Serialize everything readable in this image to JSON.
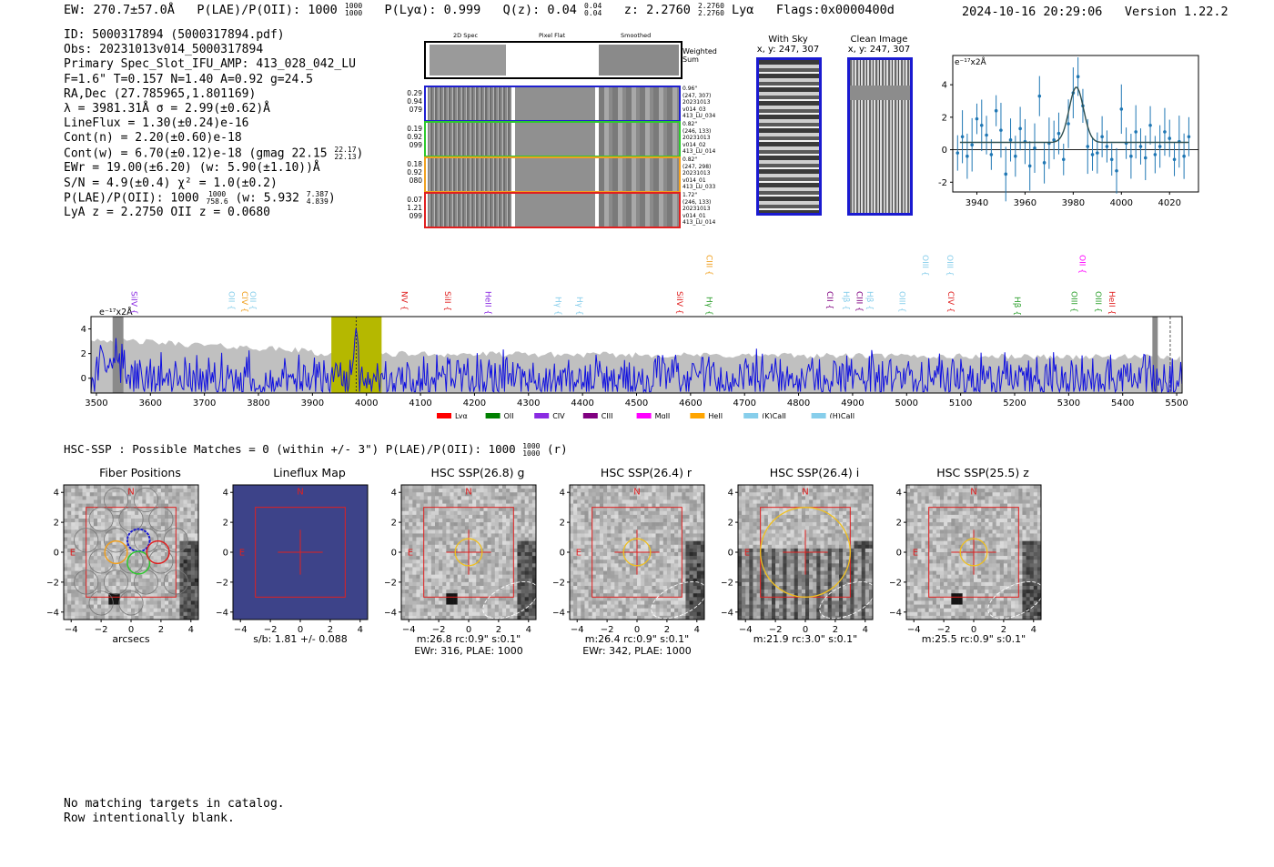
{
  "header": {
    "ew": "EW: 270.7±57.0Å",
    "plae_label": "P(LAE)/P(OII): 1000",
    "plae_sup": "1000",
    "plae_sub": "1000",
    "plya": "P(Lyα): 0.999",
    "qz_label": "Q(z): 0.04",
    "qz_sup": "0.04",
    "qz_sub": "0.04",
    "z_label": "z: 2.2760",
    "z_sup": "2.2760",
    "z_sub": "2.2760",
    "line": "Lyα",
    "flags": "Flags:0x0000400d",
    "timestamp": "2024-10-16 20:29:06",
    "version": "Version 1.22.2"
  },
  "info": {
    "id": "ID: 5000317894 (5000317894.pdf)",
    "obs": "Obs: 20231013v014_5000317894",
    "primary": "Primary Spec_Slot_IFU_AMP: 413_028_042_LU",
    "fiber": "F=1.6\"  T=0.157  N=1.40  A=0.92  g=24.5",
    "radec": "RA,Dec (27.785965,1.801169)",
    "lambda": "λ = 3981.31Å   σ = 2.99(±0.62)Å",
    "lineflux": "LineFlux = 1.30(±0.24)e-16",
    "contn": "Cont(n) = 2.20(±0.60)e-18",
    "contw": "Cont(w) = 6.70(±0.12)e-18 (gmag 22.15",
    "gmag_sup": "22.17",
    "gmag_sub": "22.13",
    "ewr": "EWr = 19.00(±6.20) (w: 5.90(±1.10))Å",
    "sn": "S/N = 4.9(±0.4)  χ² = 1.0(±0.2)",
    "plae": "P(LAE)/P(OII): 1000",
    "plae_sup": "1000",
    "plae_sub": "758.6",
    "plae_w": "(w: 5.932",
    "plae_w_sup": "7.387",
    "plae_w_sub": "4.839",
    "redshifts": "LyA z = 2.2750   OII z = 0.0680"
  },
  "stamps": {
    "col_titles": [
      "2D Spec",
      "Pixel Flat",
      "Smoothed"
    ],
    "weighted": "Weighted Sum",
    "rows": [
      {
        "left": [
          "0.29",
          "0.94",
          "079"
        ],
        "right": [
          "0.96\"",
          "(247, 307)",
          "20231013",
          "v014_03",
          "413_LU_034"
        ],
        "color": "#1f1fd0"
      },
      {
        "left": [
          "0.19",
          "0.92",
          "099"
        ],
        "right": [
          "0.82\"",
          "(246, 133)",
          "20231013",
          "v014_02",
          "413_LU_014"
        ],
        "color": "#2ec82e"
      },
      {
        "left": [
          "0.18",
          "0.92",
          "080"
        ],
        "right": [
          "0.82\"",
          "(247, 298)",
          "20231013",
          "v014_01",
          "413_LU_033"
        ],
        "color": "#f0a020"
      },
      {
        "left": [
          "0.07",
          "1.21",
          "099"
        ],
        "right": [
          "1.72\"",
          "(246, 133)",
          "20231013",
          "v014_01",
          "413_LU_014"
        ],
        "color": "#e02020"
      }
    ]
  },
  "sky": {
    "with_sky_title": "With Sky",
    "with_sky_coords": "x, y: 247, 307",
    "clean_title": "Clean Image",
    "clean_coords": "x, y: 247, 307"
  },
  "zoom_plot": {
    "unit_label": "e⁻¹⁷x2Å",
    "x_ticks": [
      "3940",
      "3960",
      "3980",
      "4000",
      "4020"
    ],
    "y_ticks": [
      "4",
      "2",
      "0",
      "-2"
    ]
  },
  "chart_data": [
    {
      "type": "scatter",
      "title": "Zoomed emission line (errorbars + Gaussian fit)",
      "xlabel": "",
      "ylabel": "e⁻¹⁷x2Å",
      "xlim": [
        3930,
        4032
      ],
      "ylim": [
        -2.6,
        5.8
      ],
      "fit": {
        "center": 3981.3,
        "sigma": 2.99,
        "amplitude": 3.4,
        "baseline": 0.45
      },
      "x": [
        3932,
        3934,
        3936,
        3938,
        3940,
        3942,
        3944,
        3946,
        3948,
        3950,
        3952,
        3954,
        3956,
        3958,
        3960,
        3962,
        3964,
        3966,
        3968,
        3970,
        3972,
        3974,
        3976,
        3978,
        3980,
        3982,
        3984,
        3986,
        3988,
        3990,
        3992,
        3994,
        3996,
        3998,
        4000,
        4002,
        4004,
        4006,
        4008,
        4010,
        4012,
        4014,
        4016,
        4018,
        4020,
        4022,
        4024,
        4026,
        4028
      ],
      "y": [
        -0.2,
        0.8,
        -0.4,
        0.3,
        1.9,
        1.5,
        0.9,
        -0.3,
        2.4,
        1.2,
        -1.5,
        0.6,
        -0.4,
        1.3,
        0.5,
        -1.0,
        0.1,
        3.3,
        -0.8,
        0.4,
        0.6,
        1.0,
        -0.6,
        1.6,
        3.5,
        4.5,
        2.7,
        0.2,
        -0.3,
        -0.2,
        0.8,
        0.2,
        -0.6,
        -1.3,
        2.5,
        0.4,
        -0.4,
        1.1,
        0.2,
        -0.5,
        1.5,
        -0.3,
        0.2,
        1.1,
        0.7,
        -0.6,
        0.5,
        -0.4,
        0.8
      ],
      "x_ticks": [
        3940,
        3960,
        3980,
        4000,
        4020
      ],
      "y_ticks": [
        -2,
        0,
        2,
        4
      ]
    },
    {
      "type": "line",
      "title": "Full spectrum",
      "xlabel": "Wavelength (Å)",
      "ylabel": "e⁻¹⁷x2Å",
      "xlim": [
        3490,
        5510
      ],
      "ylim": [
        -1.2,
        5.0
      ],
      "x_ticks": [
        3500,
        3600,
        3700,
        3800,
        3900,
        4000,
        4100,
        4200,
        4300,
        4400,
        4500,
        4600,
        4700,
        4800,
        4900,
        5000,
        5100,
        5200,
        5300,
        5400,
        5500
      ],
      "y_ticks": [
        0,
        2,
        4
      ],
      "highlight_band": [
        3935,
        4028
      ],
      "emission_lines": [
        {
          "label": "SiIV",
          "wave": 3490,
          "color": "#8a2be2",
          "row": 2
        },
        {
          "label": "OII",
          "wave": 3740,
          "color": "#87ceeb",
          "row": 2
        },
        {
          "label": "CIV",
          "wave": 3765,
          "color": "#f0a020",
          "row": 2
        },
        {
          "label": "OII",
          "wave": 3780,
          "color": "#87ceeb",
          "row": 2
        },
        {
          "label": "NV",
          "wave": 4060,
          "color": "#e02020",
          "row": 2
        },
        {
          "label": "SiII",
          "wave": 4140,
          "color": "#e02020",
          "row": 2
        },
        {
          "label": "HeII",
          "wave": 4215,
          "color": "#8a2be2",
          "row": 2
        },
        {
          "label": "Hγ",
          "wave": 4345,
          "color": "#87ceeb",
          "row": 3
        },
        {
          "label": "Hγ",
          "wave": 4385,
          "color": "#87ceeb",
          "row": 3
        },
        {
          "label": "SiIV",
          "wave": 4570,
          "color": "#e02020",
          "row": 2
        },
        {
          "label": "CIII",
          "wave": 4625,
          "color": "#f0a020",
          "row": 0
        },
        {
          "label": "Hγ",
          "wave": 4625,
          "color": "#2ea02e",
          "row": 3
        },
        {
          "label": "CII",
          "wave": 4848,
          "color": "#800080",
          "row": 2
        },
        {
          "label": "Hβ",
          "wave": 4878,
          "color": "#87ceeb",
          "row": 2
        },
        {
          "label": "CIII",
          "wave": 4903,
          "color": "#800080",
          "row": 2
        },
        {
          "label": "Hβ",
          "wave": 4922,
          "color": "#87ceeb",
          "row": 2
        },
        {
          "label": "OIII",
          "wave": 4982,
          "color": "#87ceeb",
          "row": 2
        },
        {
          "label": "OIII",
          "wave": 5025,
          "color": "#87ceeb",
          "row": 0
        },
        {
          "label": "OIII",
          "wave": 5070,
          "color": "#87ceeb",
          "row": 0
        },
        {
          "label": "CIV",
          "wave": 5072,
          "color": "#e02020",
          "row": 2
        },
        {
          "label": "Hβ",
          "wave": 5195,
          "color": "#2ea02e",
          "row": 3
        },
        {
          "label": "OII",
          "wave": 5315,
          "color": "#ff00ff",
          "row": 0
        },
        {
          "label": "OIII",
          "wave": 5300,
          "color": "#2ea02e",
          "row": 2
        },
        {
          "label": "OIII",
          "wave": 5345,
          "color": "#2ea02e",
          "row": 2
        },
        {
          "label": "HeII",
          "wave": 5370,
          "color": "#e02020",
          "row": 2
        }
      ],
      "legend": [
        {
          "label": "Lyα",
          "color": "#ff0000"
        },
        {
          "label": "OII",
          "color": "#008000"
        },
        {
          "label": "CIV",
          "color": "#8a2be2"
        },
        {
          "label": "CIII",
          "color": "#800080"
        },
        {
          "label": "MgII",
          "color": "#ff00ff"
        },
        {
          "label": "HeII",
          "color": "#ffa500"
        },
        {
          "label": "(K)CaII",
          "color": "#87ceeb"
        },
        {
          "label": "(H)CaII",
          "color": "#87ceeb"
        }
      ]
    }
  ],
  "spectrum": {
    "unit_label": "e⁻¹⁷x2Å"
  },
  "hsc": {
    "summary": "HSC-SSP : Possible Matches = 0 (within +/- 3\")  P(LAE)/P(OII): 1000",
    "summary_sup": "1000",
    "summary_sub": "1000",
    "summary_tail": "(r)",
    "cutouts": [
      {
        "title": "Fiber Positions",
        "foot1": "arcsecs",
        "foot2": "",
        "kind": "fiber"
      },
      {
        "title": "Lineflux Map",
        "foot1": "s/b: 1.81 +/- 0.088",
        "foot2": "",
        "kind": "lineflux"
      },
      {
        "title": "HSC SSP(26.8) g",
        "foot1": "m:26.8  rc:0.9\"  s:0.1\"",
        "foot2": "EWr: 316, PLAE: 1000",
        "kind": "g"
      },
      {
        "title": "HSC SSP(26.4) r",
        "foot1": "m:26.4  rc:0.9\"  s:0.1\"",
        "foot2": "EWr: 342, PLAE: 1000",
        "kind": "r"
      },
      {
        "title": "HSC SSP(26.4) i",
        "foot1": "m:21.9  rc:3.0\"  s:0.1\"",
        "foot2": "",
        "kind": "i"
      },
      {
        "title": "HSC SSP(25.5) z",
        "foot1": "m:25.5  rc:0.9\"  s:0.1\"",
        "foot2": "",
        "kind": "z"
      }
    ],
    "axis_ticks": [
      "-4",
      "-2",
      "0",
      "2",
      "4"
    ],
    "compass_n": "N",
    "compass_e": "E"
  },
  "footer": {
    "line1": "No matching targets in catalog.",
    "line2": "Row intentionally blank."
  }
}
